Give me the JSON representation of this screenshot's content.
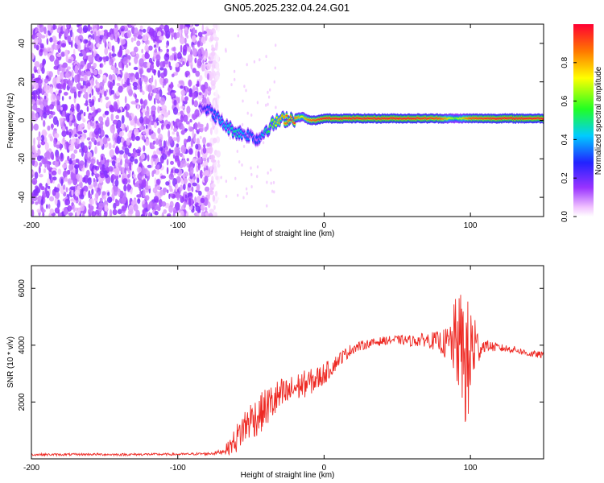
{
  "title": "GN05.2025.232.04.24.G01",
  "colors": {
    "line": "#ee2a24",
    "axis": "#000000"
  },
  "chart_data": [
    {
      "type": "heatmap",
      "xlabel": "Height of straight line (km)",
      "ylabel": "Frequency (Hz)",
      "xlim": [
        -200,
        150
      ],
      "ylim": [
        -50,
        50
      ],
      "x_ticks": [
        "-200",
        "-100",
        "0",
        "100"
      ],
      "y_ticks": [
        "-40",
        "-20",
        "0",
        "20",
        "40"
      ],
      "colorbar": {
        "label": "Normalized spectral amplitude",
        "range": [
          0.0,
          1.0
        ],
        "ticks": [
          "0.0",
          "0.2",
          "0.4",
          "0.6",
          "0.8"
        ],
        "colormap": "rainbow (white-magenta-purple-blue-cyan-green-yellow-red)"
      },
      "features": {
        "noise_region_x": [
          -200,
          -72
        ],
        "noise_amplitude": 0.1,
        "signal_trace": {
          "x": [
            -85,
            -80,
            -75,
            -70,
            -65,
            -60,
            -55,
            -50,
            -45,
            -40,
            -35,
            -30,
            -25,
            -20,
            -15,
            -10,
            -5,
            0,
            20,
            40,
            60,
            80,
            90,
            100,
            120,
            150
          ],
          "freq_hz": [
            8,
            6,
            3,
            -1,
            -4,
            -6,
            -7,
            -8,
            -10,
            -5,
            -2,
            0,
            1,
            1,
            2,
            0,
            0,
            1,
            1,
            1,
            1,
            1,
            1,
            1,
            1,
            1
          ],
          "amplitude": [
            0.2,
            0.3,
            0.35,
            0.4,
            0.45,
            0.5,
            0.4,
            0.35,
            0.3,
            0.5,
            0.65,
            0.8,
            0.9,
            0.95,
            0.7,
            0.9,
            0.95,
            1.0,
            1.0,
            1.0,
            1.0,
            0.95,
            0.6,
            0.95,
            1.0,
            1.0
          ]
        }
      }
    },
    {
      "type": "line",
      "xlabel": "Height of straight line (km)",
      "ylabel": "SNR (10 * v/v)",
      "xlim": [
        -200,
        150
      ],
      "ylim": [
        0,
        6800
      ],
      "x_ticks": [
        "-200",
        "-100",
        "0",
        "100"
      ],
      "y_ticks": [
        "2000",
        "4000",
        "6000"
      ],
      "series": [
        {
          "x": [
            -200,
            -180,
            -160,
            -140,
            -120,
            -100,
            -90,
            -80,
            -75,
            -70,
            -65,
            -60,
            -55,
            -50,
            -45,
            -40,
            -35,
            -30,
            -25,
            -20,
            -15,
            -10,
            -5,
            0,
            5,
            10,
            20,
            30,
            40,
            50,
            60,
            70,
            80,
            85,
            90,
            95,
            98,
            100,
            102,
            105,
            110,
            120,
            130,
            140,
            150
          ],
          "values": [
            150,
            150,
            160,
            150,
            160,
            160,
            170,
            180,
            200,
            250,
            400,
            700,
            1100,
            1400,
            1500,
            1800,
            2000,
            2200,
            2300,
            2500,
            2600,
            2700,
            2800,
            3000,
            3200,
            3500,
            3900,
            4050,
            4150,
            4200,
            4150,
            4200,
            4100,
            4000,
            4200,
            3800,
            3000,
            3500,
            4100,
            3900,
            4000,
            3900,
            3850,
            3700,
            3650
          ],
          "noise_amplitude": [
            40,
            40,
            40,
            40,
            40,
            40,
            40,
            50,
            60,
            80,
            250,
            500,
            650,
            700,
            700,
            700,
            700,
            650,
            550,
            500,
            500,
            450,
            450,
            400,
            300,
            250,
            200,
            150,
            150,
            150,
            200,
            250,
            400,
            700,
            1500,
            2200,
            2600,
            2500,
            1800,
            600,
            200,
            150,
            120,
            120,
            120
          ]
        }
      ]
    }
  ]
}
